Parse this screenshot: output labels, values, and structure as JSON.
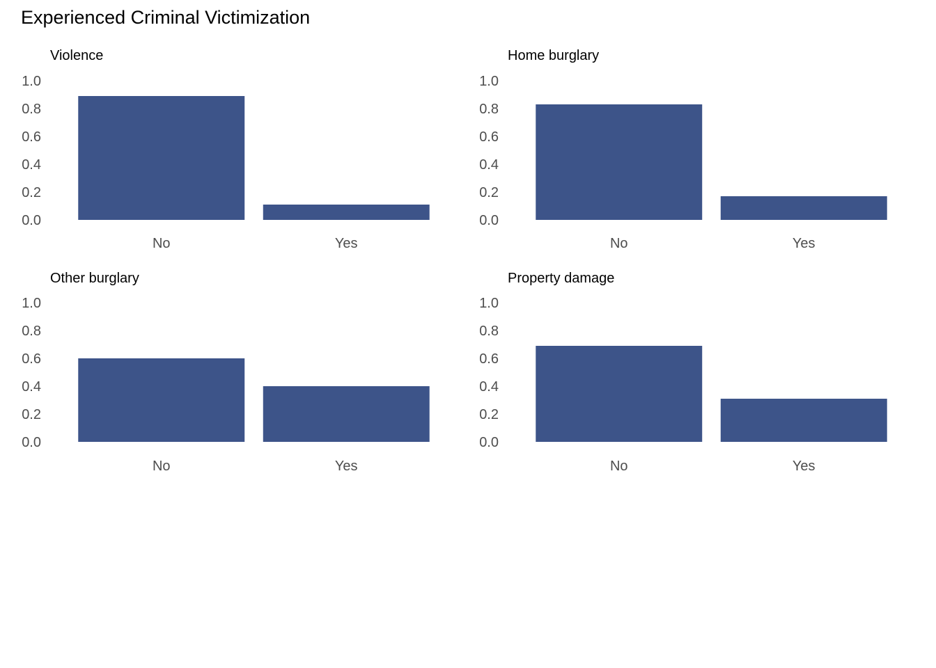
{
  "title": "Experienced Criminal Victimization",
  "bar_color": "#3d5489",
  "text_color": "#4d4d4d",
  "chart_data": [
    {
      "type": "bar",
      "title": "Violence",
      "categories": [
        "No",
        "Yes"
      ],
      "values": [
        0.89,
        0.11
      ],
      "ylim": [
        0,
        1.0
      ],
      "yticks": [
        "0.0",
        "0.2",
        "0.4",
        "0.6",
        "0.8",
        "1.0"
      ],
      "grid": false
    },
    {
      "type": "bar",
      "title": "Home burglary",
      "categories": [
        "No",
        "Yes"
      ],
      "values": [
        0.83,
        0.17
      ],
      "ylim": [
        0,
        1.0
      ],
      "yticks": [
        "0.0",
        "0.2",
        "0.4",
        "0.6",
        "0.8",
        "1.0"
      ],
      "grid": false
    },
    {
      "type": "bar",
      "title": "Other burglary",
      "categories": [
        "No",
        "Yes"
      ],
      "values": [
        0.6,
        0.4
      ],
      "ylim": [
        0,
        1.0
      ],
      "yticks": [
        "0.0",
        "0.2",
        "0.4",
        "0.6",
        "0.8",
        "1.0"
      ],
      "grid": false
    },
    {
      "type": "bar",
      "title": "Property damage",
      "categories": [
        "No",
        "Yes"
      ],
      "values": [
        0.69,
        0.31
      ],
      "ylim": [
        0,
        1.0
      ],
      "yticks": [
        "0.0",
        "0.2",
        "0.4",
        "0.6",
        "0.8",
        "1.0"
      ],
      "grid": false
    }
  ]
}
